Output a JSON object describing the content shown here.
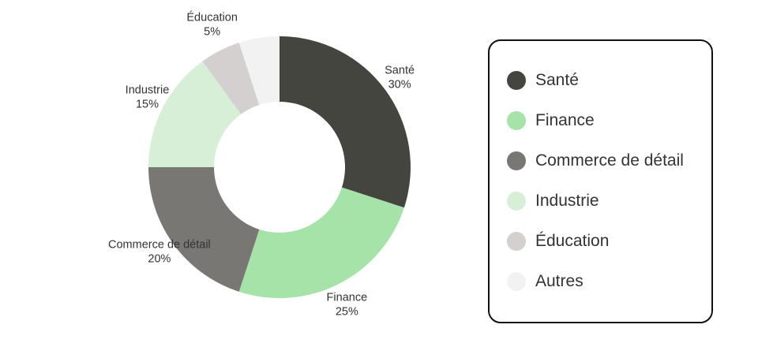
{
  "chart_data": {
    "type": "pie",
    "variant": "donut",
    "slices": [
      {
        "label": "Santé",
        "value": 30,
        "value_label": "30%",
        "color": "#45453f"
      },
      {
        "label": "Finance",
        "value": 25,
        "value_label": "25%",
        "color": "#a5e3a8"
      },
      {
        "label": "Commerce de détail",
        "value": 20,
        "value_label": "20%",
        "color": "#787774"
      },
      {
        "label": "Industrie",
        "value": 15,
        "value_label": "15%",
        "color": "#d6efd6"
      },
      {
        "label": "Éducation",
        "value": 5,
        "value_label": "5%",
        "color": "#d4d0cf"
      },
      {
        "label": "Autres",
        "value": 5,
        "value_label": "",
        "color": "#f2f2f2"
      }
    ],
    "legend": {
      "position": "right",
      "items": [
        {
          "label": "Santé",
          "color": "#45453f"
        },
        {
          "label": "Finance",
          "color": "#a5e3a8"
        },
        {
          "label": "Commerce de détail",
          "color": "#787774"
        },
        {
          "label": "Industrie",
          "color": "#d6efd6"
        },
        {
          "label": "Éducation",
          "color": "#d4d0cf"
        },
        {
          "label": "Autres",
          "color": "#f2f2f2"
        }
      ]
    }
  }
}
